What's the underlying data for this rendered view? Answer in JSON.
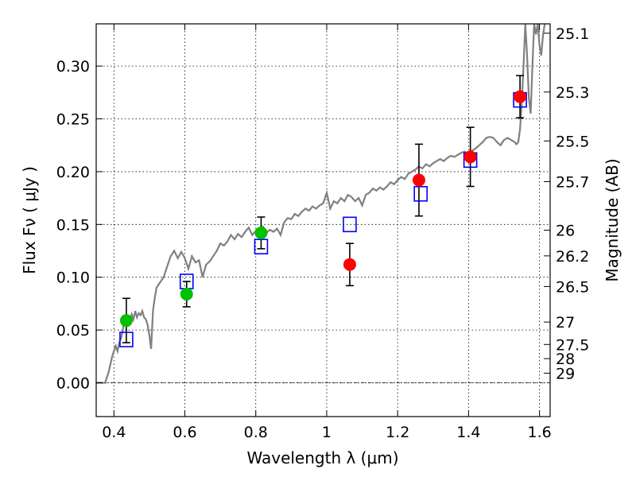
{
  "chart_data": {
    "type": "scatter",
    "xlabel": "Wavelength  λ (μm)",
    "ylabel": "Flux  Fν  ( μJy )",
    "y2label": "Magnitude (AB)",
    "xlim": [
      0.35,
      1.63
    ],
    "ylim": [
      -0.032,
      0.34
    ],
    "grid": true,
    "x_ticks": [
      {
        "value": 0.4,
        "label": "0.4"
      },
      {
        "value": 0.6,
        "label": "0.6"
      },
      {
        "value": 0.8,
        "label": "0.8"
      },
      {
        "value": 1.0,
        "label": "1"
      },
      {
        "value": 1.2,
        "label": "1.2"
      },
      {
        "value": 1.4,
        "label": "1.4"
      },
      {
        "value": 1.6,
        "label": "1.6"
      }
    ],
    "y_ticks": [
      {
        "value": 0.0,
        "label": "0.00"
      },
      {
        "value": 0.05,
        "label": "0.05"
      },
      {
        "value": 0.1,
        "label": "0.10"
      },
      {
        "value": 0.15,
        "label": "0.15"
      },
      {
        "value": 0.2,
        "label": "0.20"
      },
      {
        "value": 0.25,
        "label": "0.25"
      },
      {
        "value": 0.3,
        "label": "0.30"
      }
    ],
    "y2_ticks": [
      {
        "mag": 25.1,
        "label": "25.1"
      },
      {
        "mag": 25.3,
        "label": "25.3"
      },
      {
        "mag": 25.5,
        "label": "25.5"
      },
      {
        "mag": 25.7,
        "label": "25.7"
      },
      {
        "mag": 26.0,
        "label": "26"
      },
      {
        "mag": 26.2,
        "label": "26.2"
      },
      {
        "mag": 26.5,
        "label": "26.5"
      },
      {
        "mag": 27.0,
        "label": "27"
      },
      {
        "mag": 27.5,
        "label": "27.5"
      },
      {
        "mag": 28.0,
        "label": "28"
      },
      {
        "mag": 29.0,
        "label": "29"
      }
    ],
    "model_spectrum": {
      "color": "#808080",
      "points": [
        [
          0.35,
          0.0
        ],
        [
          0.375,
          0.0
        ],
        [
          0.385,
          0.01
        ],
        [
          0.395,
          0.025
        ],
        [
          0.405,
          0.035
        ],
        [
          0.41,
          0.03
        ],
        [
          0.415,
          0.038
        ],
        [
          0.42,
          0.042
        ],
        [
          0.425,
          0.05
        ],
        [
          0.43,
          0.06
        ],
        [
          0.435,
          0.055
        ],
        [
          0.44,
          0.062
        ],
        [
          0.445,
          0.058
        ],
        [
          0.45,
          0.065
        ],
        [
          0.455,
          0.06
        ],
        [
          0.46,
          0.068
        ],
        [
          0.465,
          0.062
        ],
        [
          0.47,
          0.066
        ],
        [
          0.475,
          0.064
        ],
        [
          0.48,
          0.068
        ],
        [
          0.485,
          0.062
        ],
        [
          0.49,
          0.06
        ],
        [
          0.495,
          0.055
        ],
        [
          0.5,
          0.045
        ],
        [
          0.505,
          0.032
        ],
        [
          0.51,
          0.068
        ],
        [
          0.515,
          0.08
        ],
        [
          0.52,
          0.09
        ],
        [
          0.53,
          0.095
        ],
        [
          0.54,
          0.1
        ],
        [
          0.55,
          0.11
        ],
        [
          0.56,
          0.12
        ],
        [
          0.57,
          0.125
        ],
        [
          0.58,
          0.118
        ],
        [
          0.59,
          0.124
        ],
        [
          0.6,
          0.118
        ],
        [
          0.61,
          0.108
        ],
        [
          0.62,
          0.12
        ],
        [
          0.63,
          0.114
        ],
        [
          0.64,
          0.116
        ],
        [
          0.65,
          0.1
        ],
        [
          0.66,
          0.112
        ],
        [
          0.67,
          0.115
        ],
        [
          0.68,
          0.12
        ],
        [
          0.69,
          0.125
        ],
        [
          0.7,
          0.132
        ],
        [
          0.71,
          0.13
        ],
        [
          0.72,
          0.134
        ],
        [
          0.73,
          0.14
        ],
        [
          0.74,
          0.136
        ],
        [
          0.75,
          0.141
        ],
        [
          0.76,
          0.138
        ],
        [
          0.77,
          0.143
        ],
        [
          0.78,
          0.147
        ],
        [
          0.79,
          0.14
        ],
        [
          0.8,
          0.144
        ],
        [
          0.81,
          0.146
        ],
        [
          0.82,
          0.148
        ],
        [
          0.83,
          0.142
        ],
        [
          0.84,
          0.145
        ],
        [
          0.85,
          0.143
        ],
        [
          0.86,
          0.146
        ],
        [
          0.87,
          0.14
        ],
        [
          0.88,
          0.152
        ],
        [
          0.89,
          0.156
        ],
        [
          0.9,
          0.155
        ],
        [
          0.91,
          0.16
        ],
        [
          0.92,
          0.158
        ],
        [
          0.93,
          0.162
        ],
        [
          0.94,
          0.165
        ],
        [
          0.95,
          0.163
        ],
        [
          0.96,
          0.167
        ],
        [
          0.97,
          0.165
        ],
        [
          0.98,
          0.168
        ],
        [
          0.99,
          0.17
        ],
        [
          1.0,
          0.18
        ],
        [
          1.01,
          0.165
        ],
        [
          1.02,
          0.172
        ],
        [
          1.03,
          0.17
        ],
        [
          1.04,
          0.175
        ],
        [
          1.05,
          0.172
        ],
        [
          1.06,
          0.178
        ],
        [
          1.07,
          0.176
        ],
        [
          1.08,
          0.172
        ],
        [
          1.09,
          0.175
        ],
        [
          1.1,
          0.168
        ],
        [
          1.11,
          0.178
        ],
        [
          1.12,
          0.18
        ],
        [
          1.13,
          0.184
        ],
        [
          1.14,
          0.182
        ],
        [
          1.15,
          0.185
        ],
        [
          1.16,
          0.183
        ],
        [
          1.17,
          0.186
        ],
        [
          1.18,
          0.19
        ],
        [
          1.19,
          0.188
        ],
        [
          1.2,
          0.192
        ],
        [
          1.21,
          0.195
        ],
        [
          1.22,
          0.193
        ],
        [
          1.23,
          0.198
        ],
        [
          1.24,
          0.2
        ],
        [
          1.25,
          0.202
        ],
        [
          1.26,
          0.205
        ],
        [
          1.27,
          0.203
        ],
        [
          1.28,
          0.207
        ],
        [
          1.29,
          0.205
        ],
        [
          1.3,
          0.208
        ],
        [
          1.31,
          0.21
        ],
        [
          1.32,
          0.212
        ],
        [
          1.33,
          0.21
        ],
        [
          1.34,
          0.213
        ],
        [
          1.35,
          0.215
        ],
        [
          1.36,
          0.214
        ],
        [
          1.37,
          0.216
        ],
        [
          1.38,
          0.218
        ],
        [
          1.39,
          0.219
        ],
        [
          1.4,
          0.216
        ],
        [
          1.41,
          0.22
        ],
        [
          1.42,
          0.222
        ],
        [
          1.43,
          0.225
        ],
        [
          1.44,
          0.228
        ],
        [
          1.45,
          0.232
        ],
        [
          1.46,
          0.233
        ],
        [
          1.47,
          0.232
        ],
        [
          1.48,
          0.228
        ],
        [
          1.49,
          0.225
        ],
        [
          1.5,
          0.23
        ],
        [
          1.51,
          0.232
        ],
        [
          1.52,
          0.23
        ],
        [
          1.53,
          0.228
        ],
        [
          1.535,
          0.226
        ],
        [
          1.54,
          0.228
        ],
        [
          1.545,
          0.24
        ],
        [
          1.55,
          0.265
        ],
        [
          1.555,
          0.3
        ],
        [
          1.56,
          0.34
        ],
        [
          1.565,
          0.31
        ],
        [
          1.57,
          0.27
        ],
        [
          1.575,
          0.255
        ],
        [
          1.58,
          0.3
        ],
        [
          1.585,
          0.34
        ],
        [
          1.59,
          0.33
        ],
        [
          1.595,
          0.34
        ],
        [
          1.6,
          0.32
        ],
        [
          1.605,
          0.31
        ],
        [
          1.61,
          0.33
        ],
        [
          1.615,
          0.34
        ]
      ]
    },
    "model_photometry": {
      "color": "#0000ff",
      "points": [
        {
          "x": 0.435,
          "y": 0.041
        },
        {
          "x": 0.605,
          "y": 0.096
        },
        {
          "x": 0.815,
          "y": 0.129
        },
        {
          "x": 1.065,
          "y": 0.15
        },
        {
          "x": 1.265,
          "y": 0.179
        },
        {
          "x": 1.405,
          "y": 0.211
        },
        {
          "x": 1.545,
          "y": 0.268
        }
      ]
    },
    "observed_optical": {
      "color": "#00c000",
      "points": [
        {
          "x": 0.435,
          "y": 0.059,
          "err": 0.021
        },
        {
          "x": 0.605,
          "y": 0.084,
          "err": 0.012
        },
        {
          "x": 0.815,
          "y": 0.142,
          "err": 0.015
        }
      ]
    },
    "observed_infrared": {
      "color": "#ff0000",
      "points": [
        {
          "x": 1.065,
          "y": 0.112,
          "err": 0.02
        },
        {
          "x": 1.26,
          "y": 0.192,
          "err": 0.034
        },
        {
          "x": 1.405,
          "y": 0.214,
          "err": 0.028
        },
        {
          "x": 1.545,
          "y": 0.271,
          "err": 0.02
        }
      ]
    }
  }
}
